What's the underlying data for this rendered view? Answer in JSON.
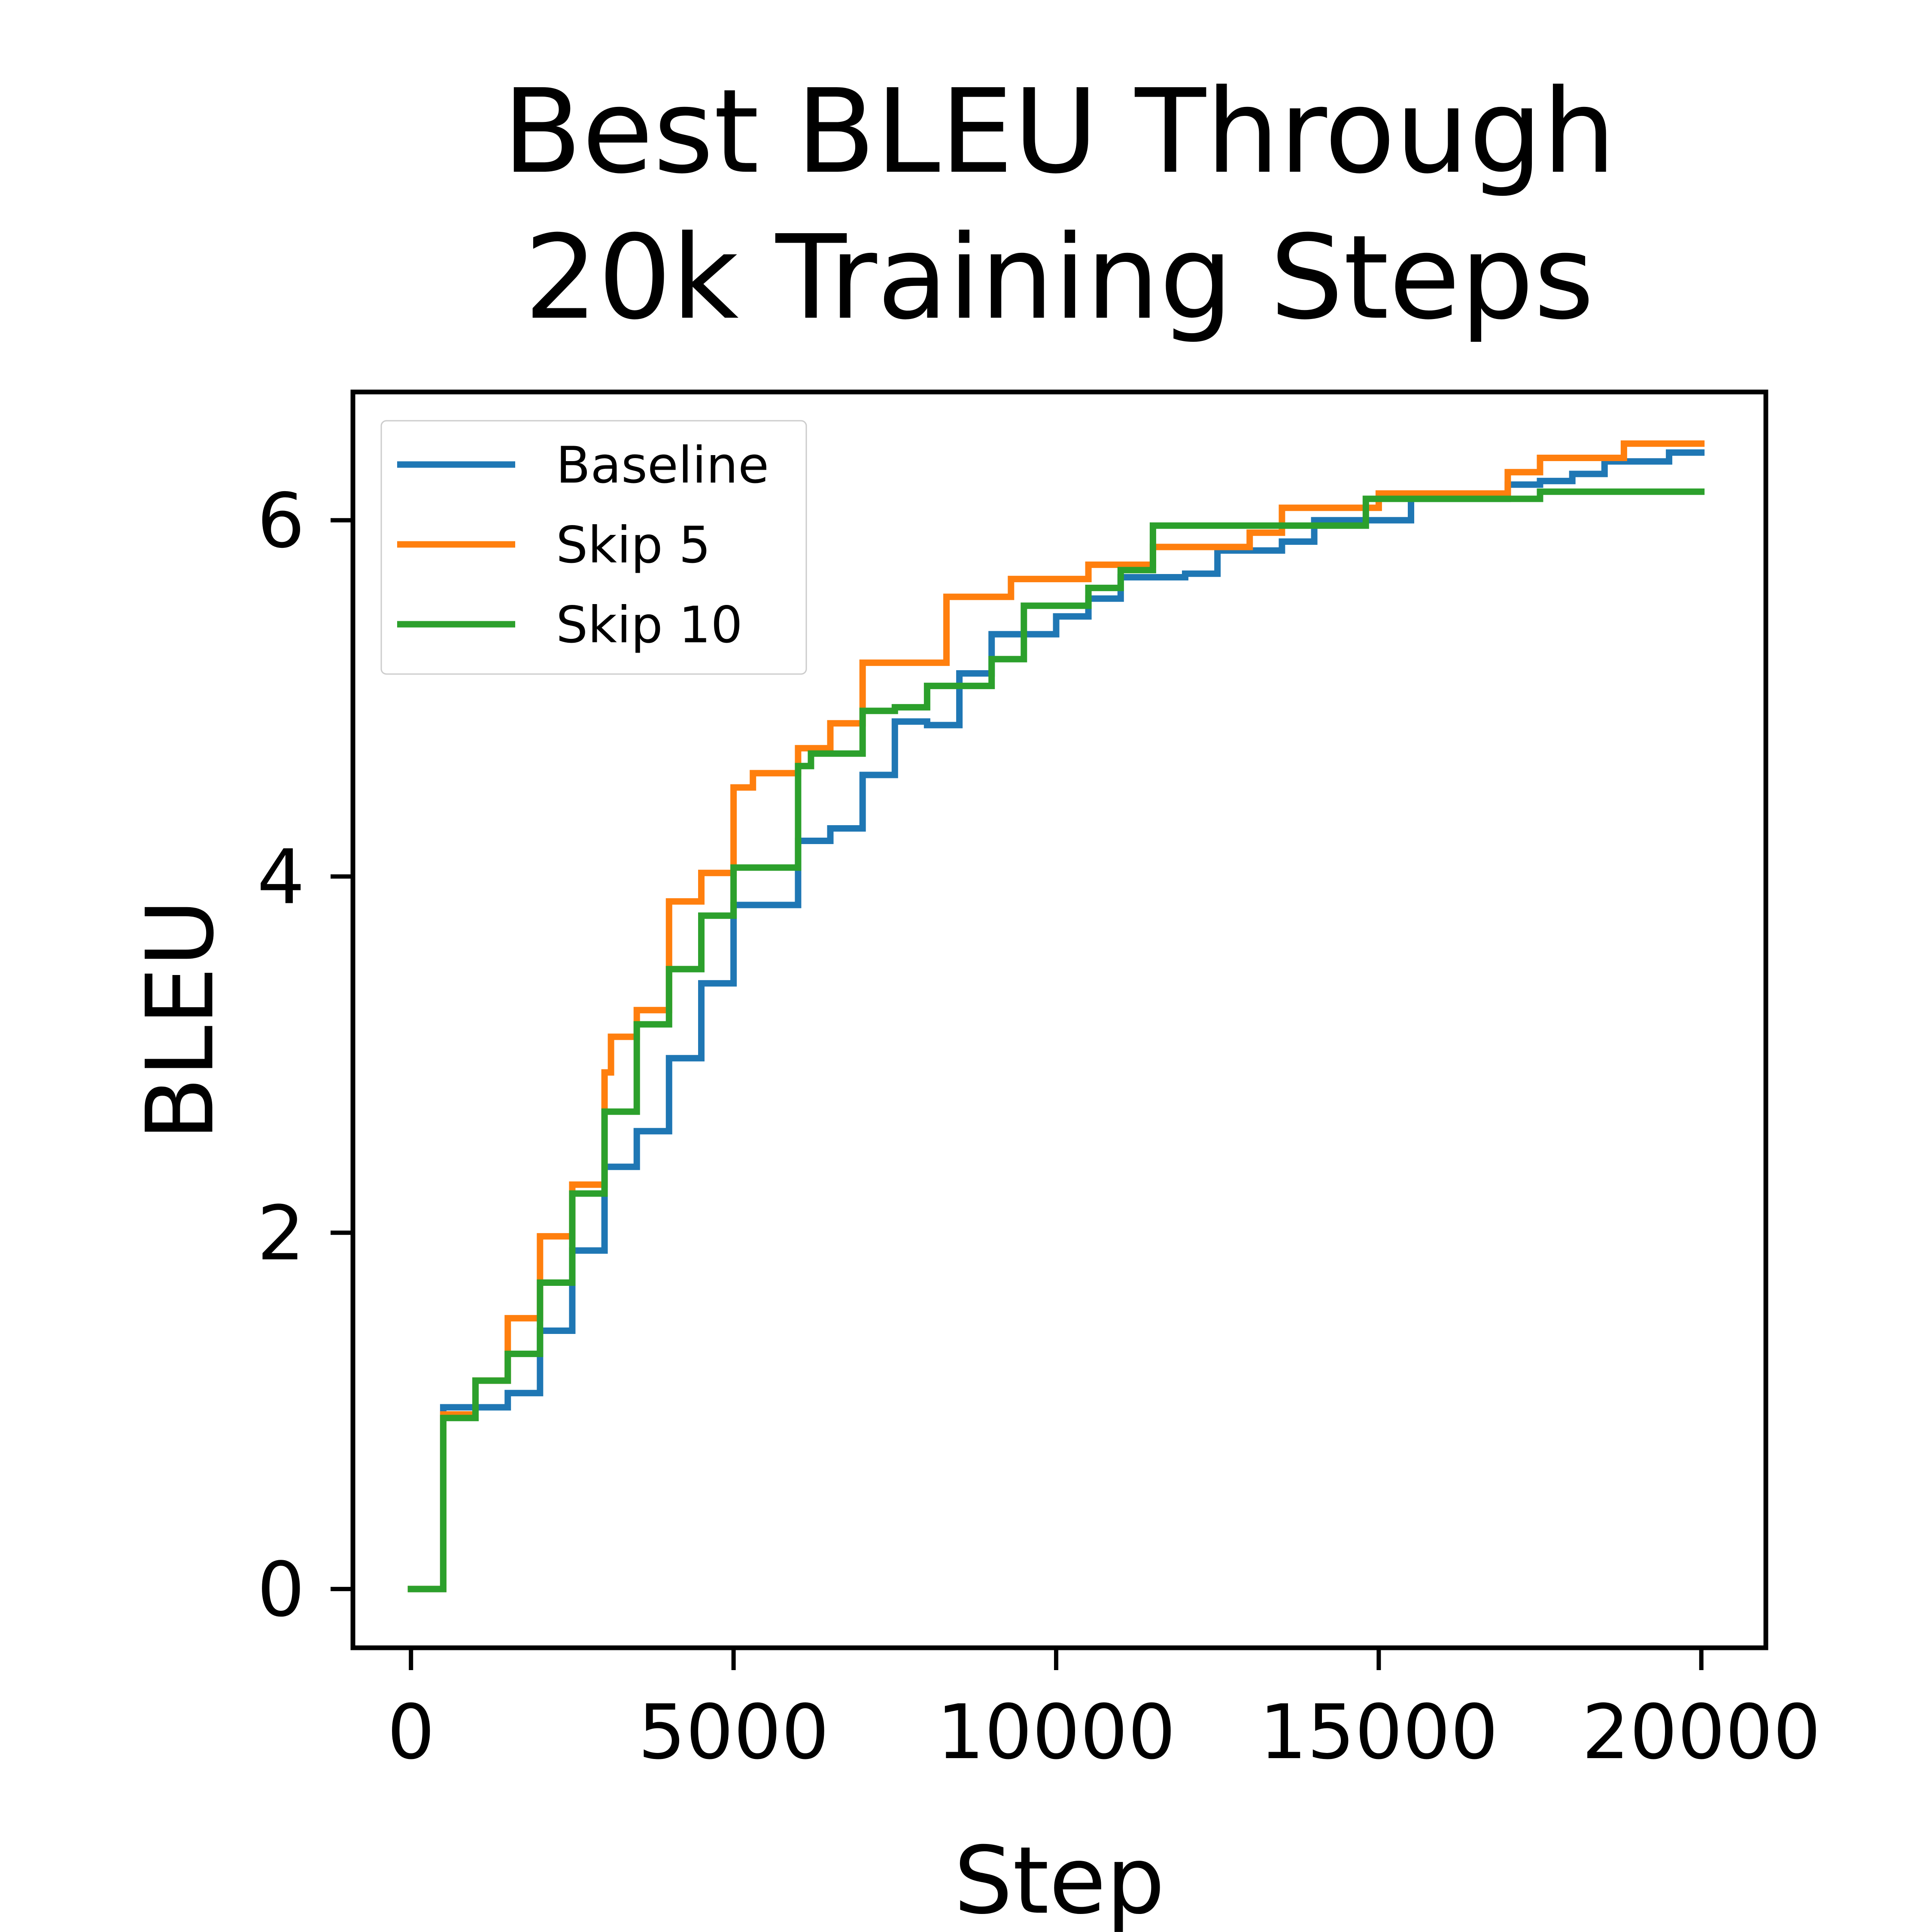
{
  "chart_data": {
    "type": "line",
    "title_lines": [
      "Best BLEU Through",
      "20k Training Steps"
    ],
    "xlabel": "Step",
    "ylabel": "BLEU",
    "xlim": [
      -900,
      21000
    ],
    "ylim": [
      -0.33,
      6.72
    ],
    "xticks": [
      0,
      5000,
      10000,
      15000,
      20000
    ],
    "xtick_labels": [
      "0",
      "5000",
      "10000",
      "15000",
      "20000"
    ],
    "yticks": [
      0,
      2,
      4,
      6
    ],
    "ytick_labels": [
      "0",
      "2",
      "4",
      "6"
    ],
    "grid": false,
    "legend_position": "top-left",
    "step_style": "post",
    "series": [
      {
        "name": "Baseline",
        "color": "#1f77b4",
        "points": [
          [
            0,
            0.0
          ],
          [
            500,
            1.02
          ],
          [
            1000,
            1.02
          ],
          [
            1500,
            1.1
          ],
          [
            2000,
            1.45
          ],
          [
            2500,
            1.9
          ],
          [
            3000,
            2.37
          ],
          [
            3500,
            2.57
          ],
          [
            4000,
            2.98
          ],
          [
            4500,
            3.4
          ],
          [
            5000,
            3.84
          ],
          [
            6000,
            4.2
          ],
          [
            6500,
            4.27
          ],
          [
            7000,
            4.57
          ],
          [
            7500,
            4.87
          ],
          [
            8000,
            4.85
          ],
          [
            8500,
            5.14
          ],
          [
            9000,
            5.36
          ],
          [
            9500,
            5.36
          ],
          [
            10000,
            5.46
          ],
          [
            10500,
            5.56
          ],
          [
            11000,
            5.68
          ],
          [
            11500,
            5.68
          ],
          [
            12000,
            5.7
          ],
          [
            12500,
            5.83
          ],
          [
            13000,
            5.83
          ],
          [
            13500,
            5.88
          ],
          [
            14000,
            6.0
          ],
          [
            15000,
            6.0
          ],
          [
            15500,
            6.12
          ],
          [
            16000,
            6.12
          ],
          [
            17000,
            6.2
          ],
          [
            17500,
            6.22
          ],
          [
            18000,
            6.26
          ],
          [
            18500,
            6.33
          ],
          [
            19500,
            6.38
          ],
          [
            20000,
            6.38
          ]
        ]
      },
      {
        "name": "Skip 5",
        "color": "#ff7f0e",
        "points": [
          [
            0,
            0.0
          ],
          [
            500,
            0.98
          ],
          [
            1000,
            1.17
          ],
          [
            1500,
            1.52
          ],
          [
            2000,
            1.98
          ],
          [
            2500,
            2.27
          ],
          [
            3000,
            2.9
          ],
          [
            3100,
            3.1
          ],
          [
            3500,
            3.25
          ],
          [
            4000,
            3.86
          ],
          [
            4500,
            4.02
          ],
          [
            5000,
            4.5
          ],
          [
            5300,
            4.58
          ],
          [
            6000,
            4.72
          ],
          [
            6500,
            4.86
          ],
          [
            7000,
            5.2
          ],
          [
            8000,
            5.2
          ],
          [
            8300,
            5.57
          ],
          [
            9300,
            5.67
          ],
          [
            10500,
            5.75
          ],
          [
            11500,
            5.85
          ],
          [
            12700,
            5.85
          ],
          [
            13000,
            5.93
          ],
          [
            13500,
            6.07
          ],
          [
            14500,
            6.07
          ],
          [
            15000,
            6.15
          ],
          [
            17000,
            6.27
          ],
          [
            17500,
            6.35
          ],
          [
            18800,
            6.43
          ],
          [
            20000,
            6.43
          ]
        ]
      },
      {
        "name": "Skip 10",
        "color": "#2ca02c",
        "points": [
          [
            0,
            0.0
          ],
          [
            500,
            0.96
          ],
          [
            1000,
            1.17
          ],
          [
            1500,
            1.32
          ],
          [
            2000,
            1.72
          ],
          [
            2500,
            2.22
          ],
          [
            3000,
            2.68
          ],
          [
            3500,
            3.17
          ],
          [
            4000,
            3.48
          ],
          [
            4500,
            3.78
          ],
          [
            5000,
            4.05
          ],
          [
            6000,
            4.62
          ],
          [
            6200,
            4.69
          ],
          [
            7000,
            4.93
          ],
          [
            7500,
            4.95
          ],
          [
            8000,
            5.07
          ],
          [
            8500,
            5.07
          ],
          [
            9000,
            5.22
          ],
          [
            9500,
            5.52
          ],
          [
            10500,
            5.62
          ],
          [
            11000,
            5.72
          ],
          [
            11500,
            5.97
          ],
          [
            14500,
            5.97
          ],
          [
            14800,
            6.12
          ],
          [
            15500,
            6.12
          ],
          [
            17500,
            6.16
          ],
          [
            20000,
            6.16
          ]
        ]
      }
    ]
  }
}
